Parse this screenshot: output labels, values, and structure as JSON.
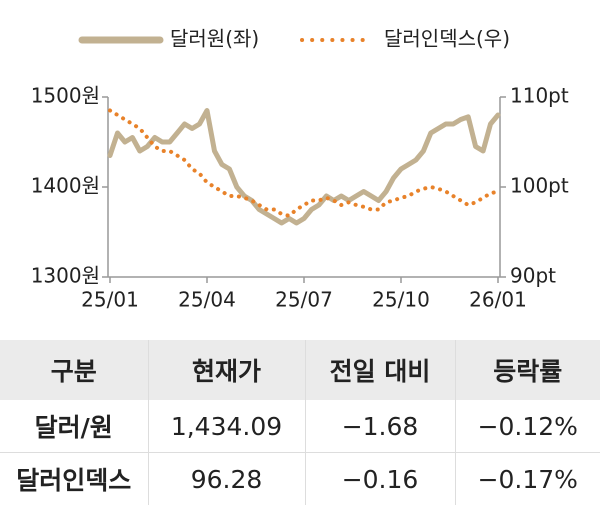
{
  "chart_data": {
    "type": "line",
    "categories": [
      "25/01",
      null,
      null,
      null,
      null,
      null,
      null,
      null,
      null,
      null,
      null,
      null,
      null,
      "25/04",
      null,
      null,
      null,
      null,
      null,
      null,
      null,
      null,
      null,
      null,
      null,
      null,
      "25/07",
      null,
      null,
      null,
      null,
      null,
      null,
      null,
      null,
      null,
      null,
      null,
      null,
      "25/10",
      null,
      null,
      null,
      null,
      null,
      null,
      null,
      null,
      null,
      null,
      null,
      null,
      "26/01"
    ],
    "series": [
      {
        "name": "달러원(좌)",
        "color": "#c2b191",
        "axis": "y",
        "values": [
          1435,
          1460,
          1450,
          1455,
          1440,
          1445,
          1455,
          1450,
          1450,
          1460,
          1470,
          1465,
          1470,
          1485,
          1440,
          1425,
          1420,
          1400,
          1390,
          1385,
          1375,
          1370,
          1365,
          1360,
          1365,
          1360,
          1365,
          1375,
          1380,
          1390,
          1385,
          1390,
          1385,
          1390,
          1395,
          1390,
          1385,
          1395,
          1410,
          1420,
          1425,
          1430,
          1440,
          1460,
          1465,
          1470,
          1470,
          1475,
          1478,
          1445,
          1440,
          1470,
          1480
        ]
      },
      {
        "name": "달러인덱스(우)",
        "color": "#e8822a",
        "axis": "y2",
        "values": [
          108.5,
          108,
          107.5,
          107,
          106.5,
          105.5,
          104.5,
          104,
          104,
          103.5,
          103,
          102,
          101.5,
          100.5,
          100,
          99.5,
          99,
          99,
          98.8,
          98.5,
          98,
          97.5,
          97.5,
          97,
          96.8,
          97.5,
          98,
          98.5,
          98.5,
          98.8,
          98.5,
          98,
          98.3,
          98,
          97.8,
          97.5,
          97.5,
          98.3,
          98.5,
          98.8,
          99,
          99.5,
          99.8,
          100,
          99.8,
          99.5,
          99,
          98.5,
          98,
          98.3,
          98.8,
          99.3,
          99.5
        ]
      }
    ],
    "ylim": [
      1300,
      1500
    ],
    "yticks": [
      {
        "value": 1300,
        "label": "1300원"
      },
      {
        "value": 1400,
        "label": "1400원"
      },
      {
        "value": 1500,
        "label": "1500원"
      }
    ],
    "y2lim": [
      90,
      110
    ],
    "y2ticks": [
      {
        "value": 90,
        "label": "90pt"
      },
      {
        "value": 100,
        "label": "100pt"
      },
      {
        "value": 110,
        "label": "110pt"
      }
    ],
    "grid": false
  },
  "table": {
    "header": [
      "구분",
      "현재가",
      "전일 대비",
      "등락률"
    ],
    "rows": [
      [
        "달러/원",
        "1,434.09",
        "−1.68",
        "−0.12%"
      ],
      [
        "달러인덱스",
        "96.28",
        "−0.16",
        "−0.17%"
      ]
    ]
  }
}
